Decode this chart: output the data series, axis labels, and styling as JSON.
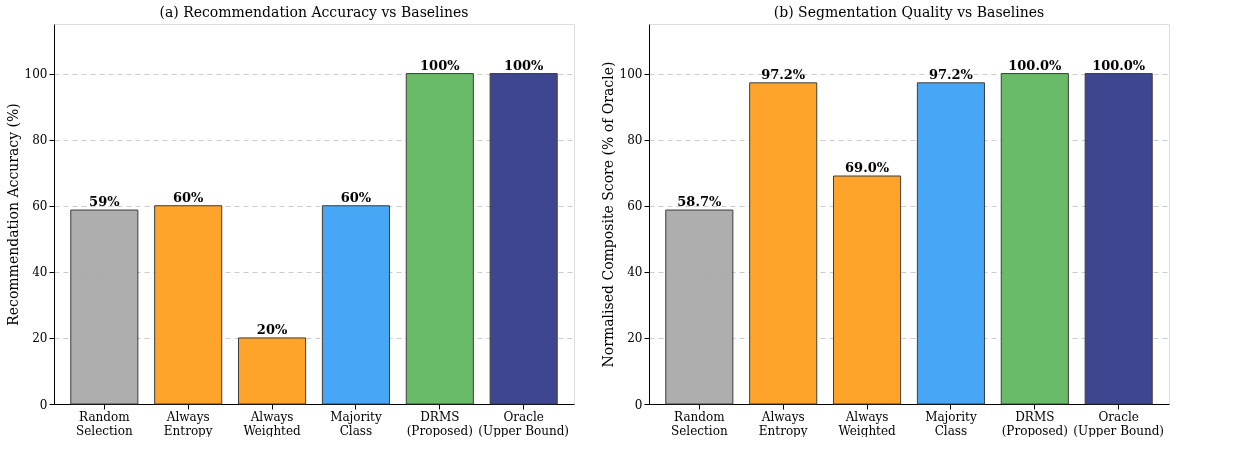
{
  "chart_data": [
    {
      "type": "bar",
      "title": "(a) Recommendation Accuracy vs Baselines",
      "ylabel": "Recommendation Accuracy (%)",
      "categories": [
        "Random\nSelection",
        "Always\nEntropy",
        "Always\nWeighted",
        "Majority\nClass",
        "DRMS\n(Proposed)",
        "Oracle\n(Upper Bound)"
      ],
      "values": [
        58.7,
        60,
        20,
        60,
        100,
        100
      ],
      "value_labels": [
        "59%",
        "60%",
        "20%",
        "60%",
        "100%",
        "100%"
      ],
      "colors": [
        "#aaaaaa",
        "#ffa020",
        "#ffa020",
        "#3ea2f5",
        "#62b862",
        "#353d8b"
      ],
      "ylim": [
        0,
        115
      ],
      "yticks": [
        0,
        20,
        40,
        60,
        80,
        100
      ],
      "grid": "y"
    },
    {
      "type": "bar",
      "title": "(b) Segmentation Quality vs Baselines",
      "ylabel": "Normalised Composite Score (% of Oracle)",
      "categories": [
        "Random\nSelection",
        "Always\nEntropy",
        "Always\nWeighted",
        "Majority\nClass",
        "DRMS\n(Proposed)",
        "Oracle\n(Upper Bound)"
      ],
      "values": [
        58.7,
        97.2,
        69.0,
        97.2,
        100.0,
        100.0
      ],
      "value_labels": [
        "58.7%",
        "97.2%",
        "69.0%",
        "97.2%",
        "100.0%",
        "100.0%"
      ],
      "colors": [
        "#aaaaaa",
        "#ffa020",
        "#ffa020",
        "#3ea2f5",
        "#62b862",
        "#353d8b"
      ],
      "ylim": [
        0,
        115
      ],
      "yticks": [
        0,
        20,
        40,
        60,
        80,
        100
      ],
      "grid": "y"
    }
  ]
}
